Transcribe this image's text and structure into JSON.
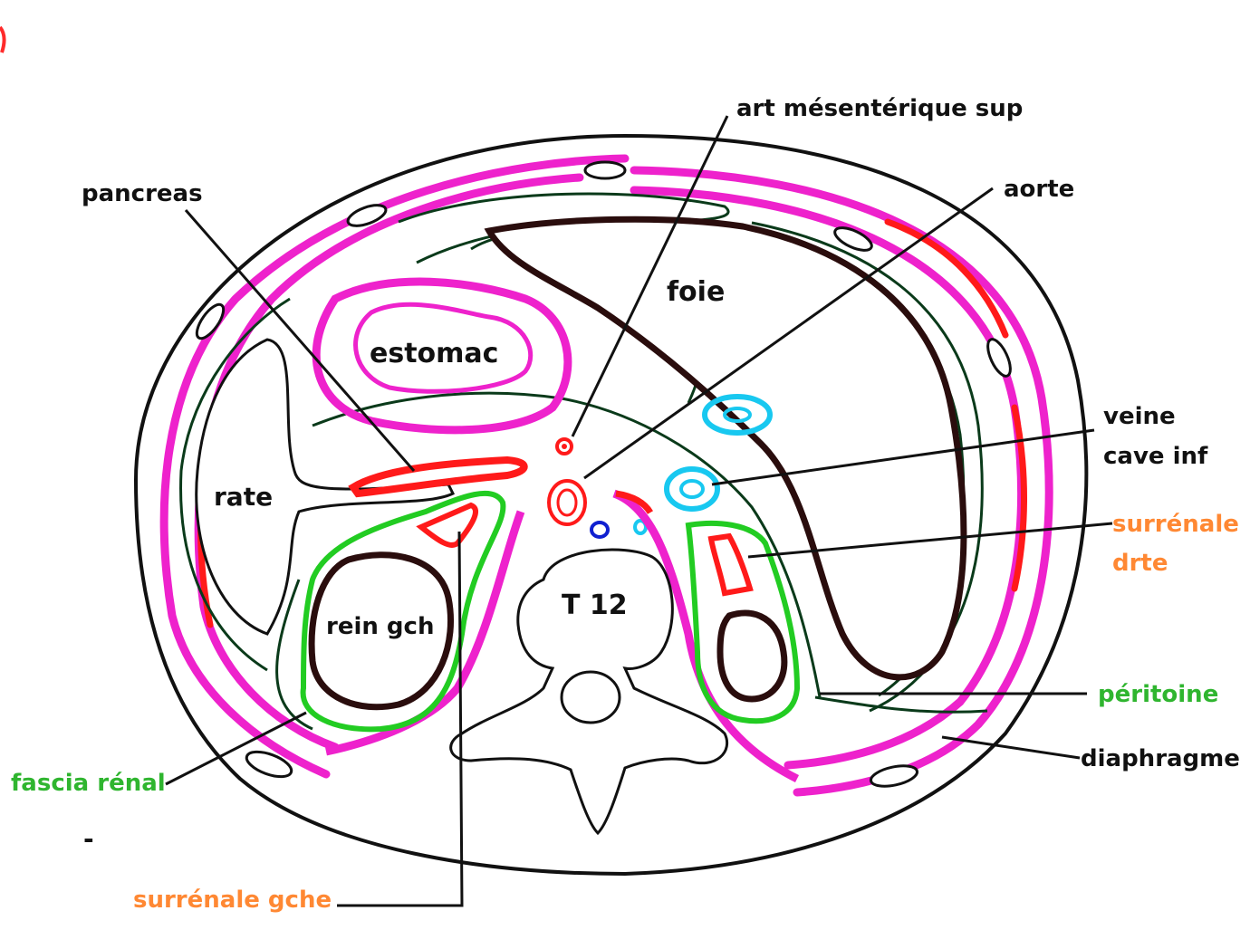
{
  "labels": {
    "art_mesenterique": "art mésentérique sup",
    "aorte": "aorte",
    "pancreas": "pancreas",
    "foie": "foie",
    "estomac": "estomac",
    "rate": "rate",
    "veine_cave_1": "veine",
    "veine_cave_2": "cave inf",
    "surrenale_drte_1": "surrénale",
    "surrenale_drte_2": "drte",
    "t12": "T 12",
    "rein_gch": "rein gch",
    "peritoine": "péritoine",
    "diaphragme": "diaphragme",
    "fascia_renal": "fascia rénal",
    "surrenale_gche": "surrénale gche",
    "dash": "-"
  },
  "colors": {
    "outline": "#111111",
    "green_line": "#0a3a1a",
    "magenta": "#ee22cc",
    "red": "#ff1a1a",
    "cyan": "#18c8f0",
    "blue": "#1020d0",
    "bright_green": "#22cc22",
    "orange": "#ff8833",
    "dark_brown": "#2a0d0d",
    "label_green": "#2fb52f",
    "label_orange": "#ff8833",
    "label_black": "#111111"
  }
}
